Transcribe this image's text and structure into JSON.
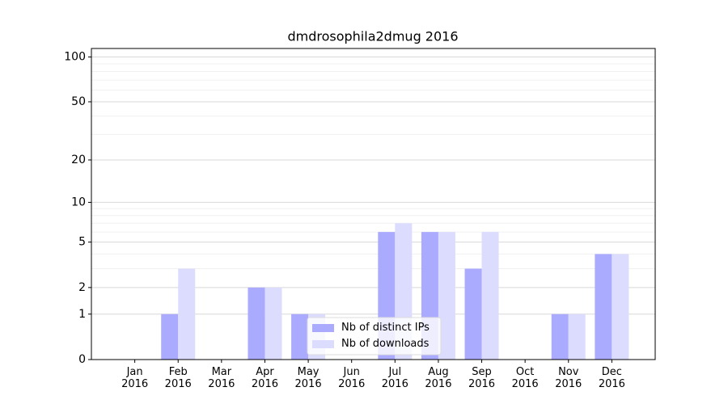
{
  "chart_data": {
    "type": "bar",
    "title": "dmdrosophila2dmug 2016",
    "categories": [
      "Jan\n2016",
      "Feb\n2016",
      "Mar\n2016",
      "Apr\n2016",
      "May\n2016",
      "Jun\n2016",
      "Jul\n2016",
      "Aug\n2016",
      "Sep\n2016",
      "Oct\n2016",
      "Nov\n2016",
      "Dec\n2016"
    ],
    "series": [
      {
        "name": "Nb of distinct IPs",
        "color": "#aaaaff",
        "values": [
          0,
          1,
          0,
          2,
          1,
          0,
          6,
          6,
          3,
          0,
          1,
          4
        ]
      },
      {
        "name": "Nb of downloads",
        "color": "#dcdcff",
        "values": [
          0,
          3,
          0,
          2,
          1,
          0,
          7,
          6,
          6,
          0,
          1,
          4
        ]
      }
    ],
    "yscale": "log1p",
    "ylim": [
      0,
      114
    ],
    "yticks": [
      0,
      1,
      2,
      5,
      10,
      20,
      50,
      100
    ],
    "minor_yticks": [
      3,
      4,
      6,
      7,
      8,
      9,
      30,
      40,
      60,
      70,
      80,
      90
    ],
    "grid": true,
    "legend": "lower center"
  }
}
